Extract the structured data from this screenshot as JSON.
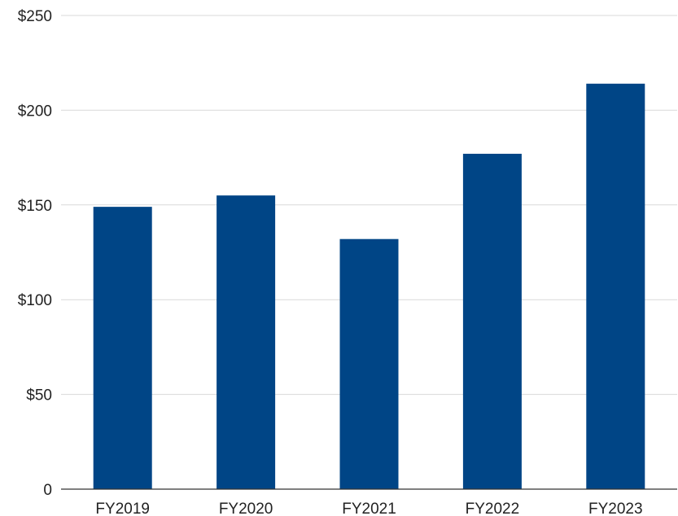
{
  "chart_data": {
    "type": "bar",
    "title": "",
    "xlabel": "",
    "ylabel": "",
    "categories": [
      "FY2019",
      "FY2020",
      "FY2021",
      "FY2022",
      "FY2023"
    ],
    "values": [
      149,
      155,
      132,
      177,
      214
    ],
    "ylim": [
      0,
      250
    ],
    "yticks": [
      0,
      50,
      100,
      150,
      200,
      250
    ],
    "ytick_labels": [
      "0",
      "$50",
      "$100",
      "$150",
      "$200",
      "$250"
    ],
    "grid": true,
    "legend": "none",
    "colors": {
      "bar": "#004586",
      "grid": "#d9d9d9",
      "axis": "#333333",
      "text": "#222222"
    }
  }
}
